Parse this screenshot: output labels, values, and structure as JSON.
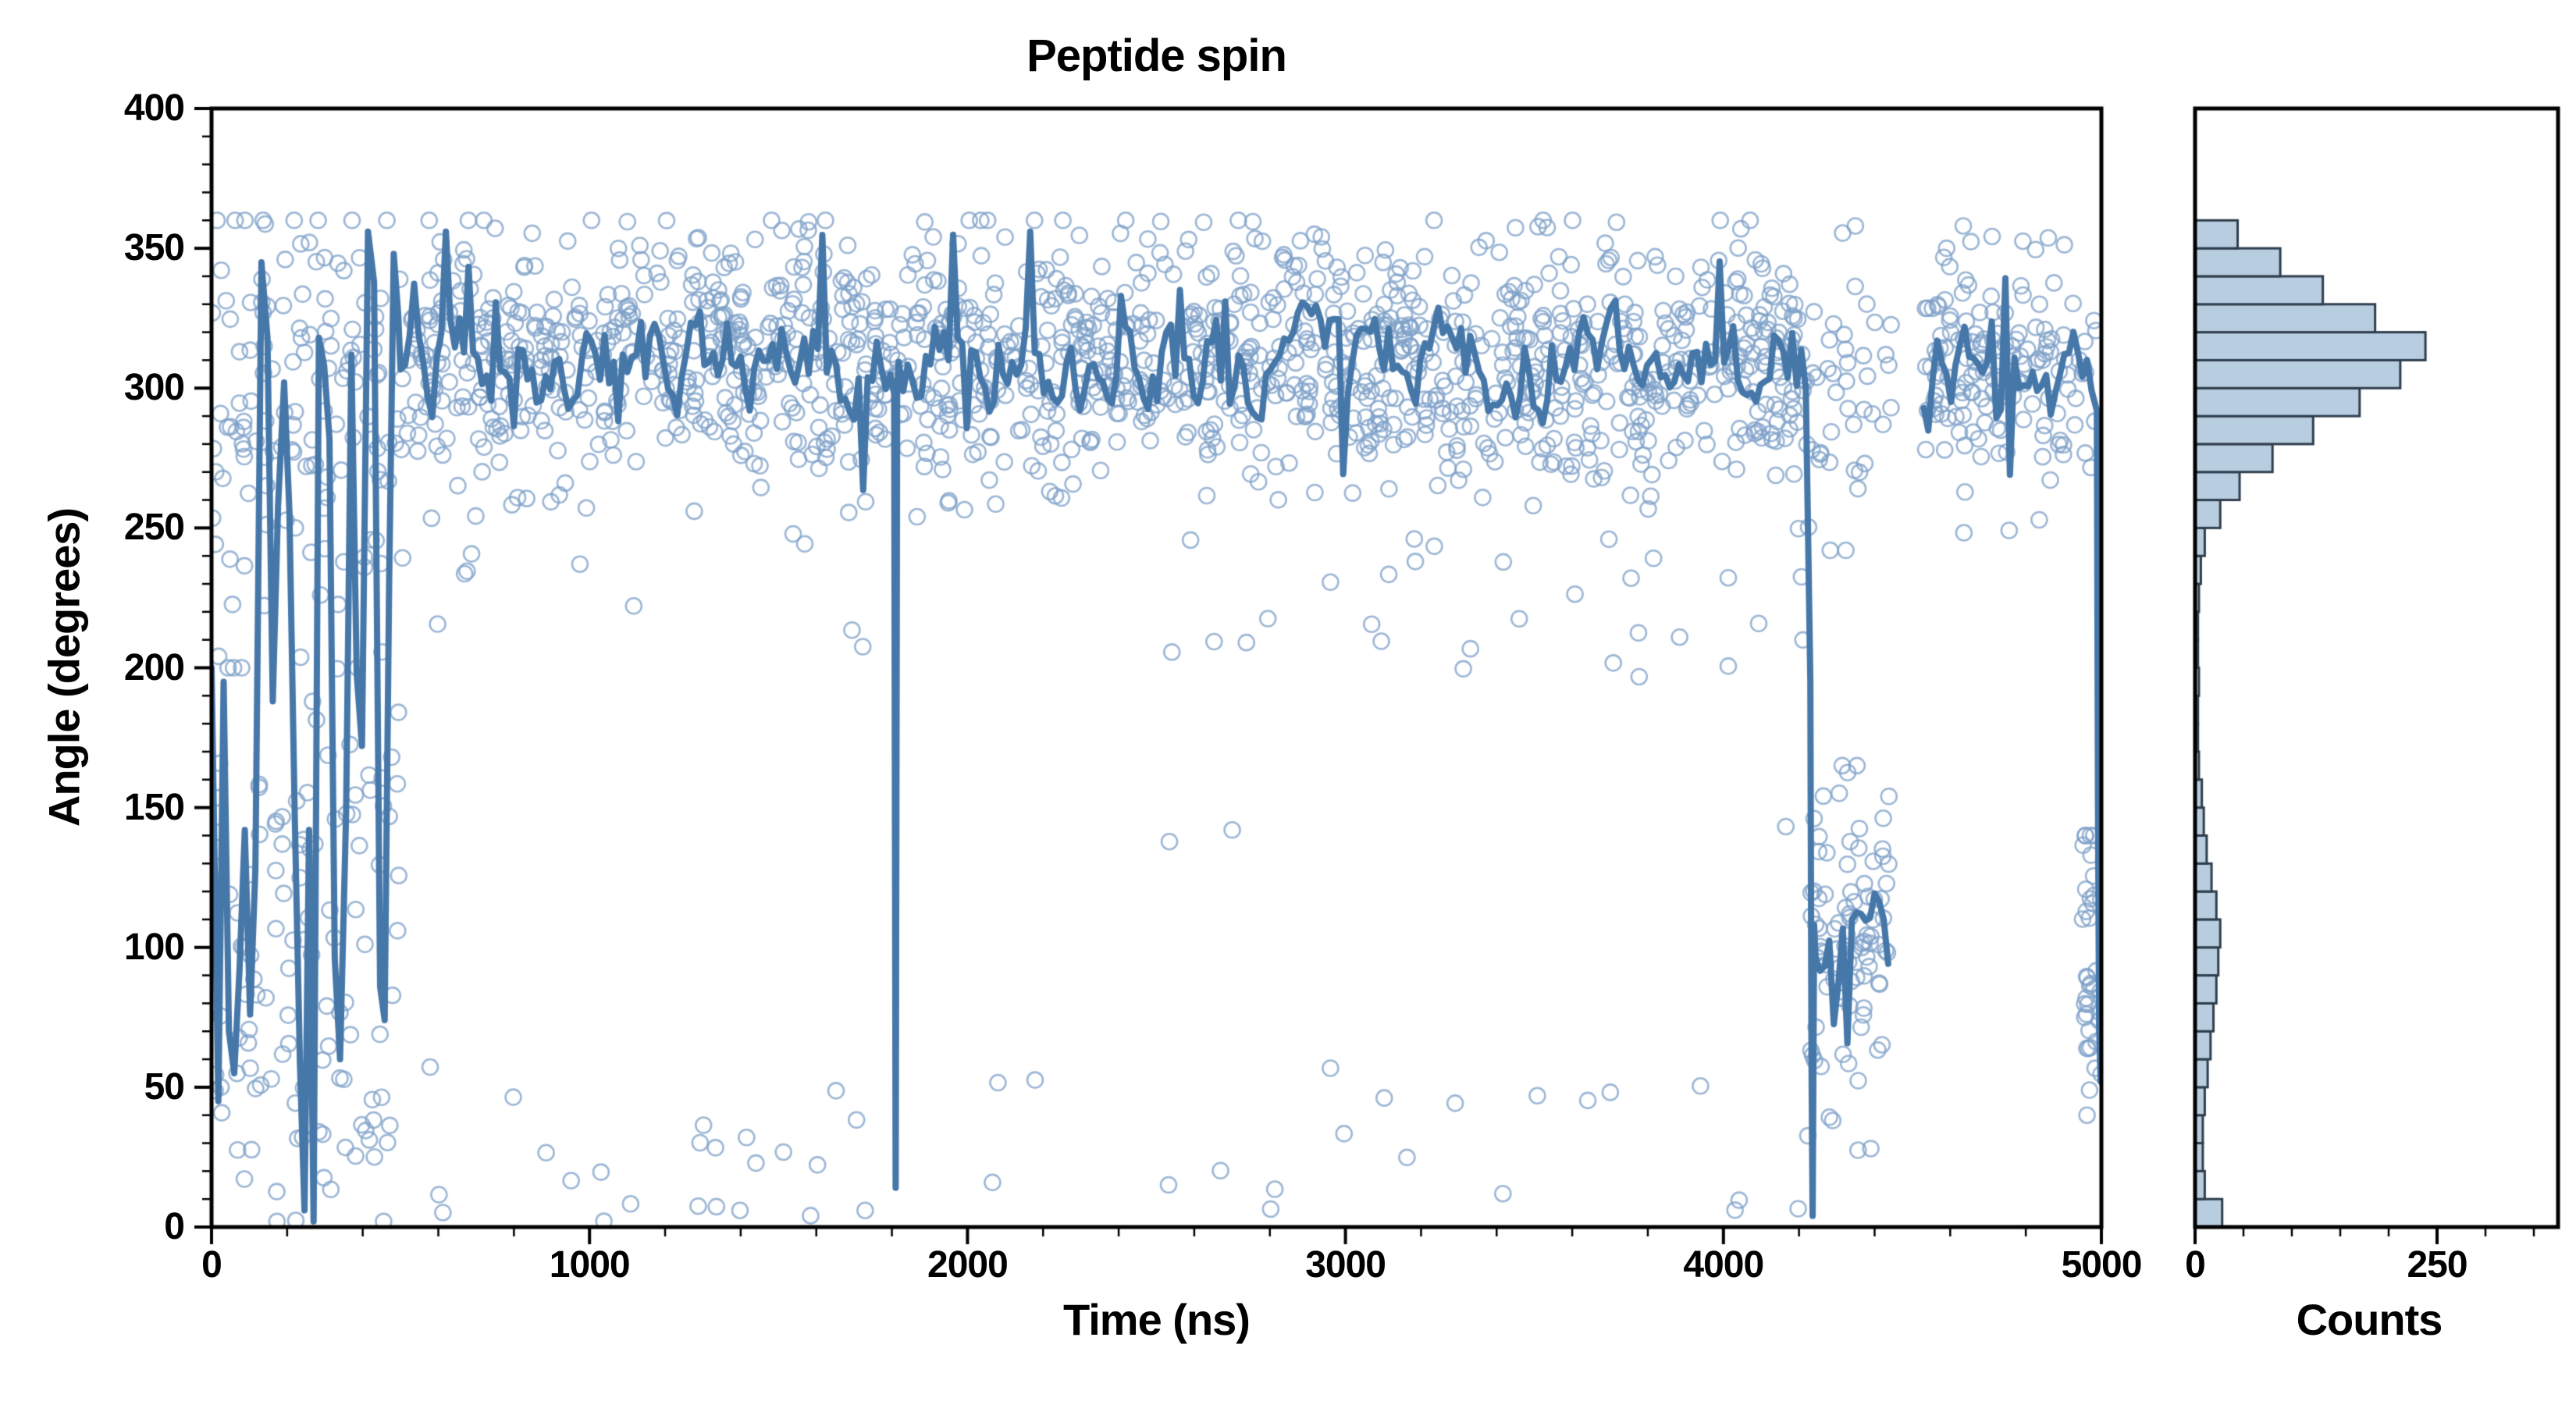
{
  "chart_data": [
    {
      "type": "scatter",
      "title": "Peptide spin",
      "xlabel": "Time (ns)",
      "ylabel": "Angle (degrees)",
      "xlim": [
        0,
        5000
      ],
      "ylim": [
        0,
        400
      ],
      "xticks": [
        0,
        1000,
        2000,
        3000,
        4000,
        5000
      ],
      "x_minor_step": 200,
      "yticks": [
        0,
        50,
        100,
        150,
        200,
        250,
        300,
        350,
        400
      ],
      "y_minor_step": 10,
      "grid": false,
      "legend": "none",
      "marker": "open-circle",
      "marker_color": "#7da0c8",
      "marker_radius": 10,
      "marker_stroke": 2.6,
      "marker_alpha": 0.75,
      "line_color": "#4677a9",
      "line_width": 8,
      "seed": 42,
      "series": [
        {
          "name": "angle samples (scatter)"
        },
        {
          "name": "running average (line)"
        }
      ],
      "scatter_clusters": [
        {
          "t0": 0,
          "t1": 500,
          "n": 120,
          "dist": "normal",
          "mean": 300,
          "sd": 42,
          "clip": [
            175,
            360
          ]
        },
        {
          "t0": 0,
          "t1": 500,
          "n": 100,
          "dist": "normal",
          "mean": 95,
          "sd": 55,
          "clip": [
            2,
            200
          ]
        },
        {
          "t0": 0,
          "t1": 500,
          "n": 25,
          "dist": "uniform",
          "min": 5,
          "max": 355
        },
        {
          "t0": 500,
          "t1": 4230,
          "n": 1350,
          "dist": "normal",
          "mean": 309,
          "sd": 23,
          "clip": [
            238,
            360
          ]
        },
        {
          "t0": 500,
          "t1": 4230,
          "n": 42,
          "dist": "uniform",
          "min": 198,
          "max": 262
        },
        {
          "t0": 500,
          "t1": 4230,
          "n": 34,
          "dist": "uniform",
          "min": 2,
          "max": 58
        },
        {
          "t0": 2400,
          "t1": 4200,
          "n": 8,
          "dist": "uniform",
          "min": 130,
          "max": 230
        },
        {
          "t0": 4230,
          "t1": 4445,
          "n": 90,
          "dist": "normal",
          "mean": 105,
          "sd": 27,
          "clip": [
            18,
            165
          ]
        },
        {
          "t0": 4230,
          "t1": 4445,
          "n": 40,
          "dist": "normal",
          "mean": 302,
          "sd": 28,
          "clip": [
            242,
            358
          ]
        },
        {
          "t0": 4530,
          "t1": 5000,
          "n": 150,
          "dist": "normal",
          "mean": 304,
          "sd": 25,
          "clip": [
            240,
            358
          ]
        },
        {
          "t0": 4950,
          "t1": 5000,
          "n": 38,
          "dist": "normal",
          "mean": 92,
          "sd": 28,
          "clip": [
            40,
            140
          ]
        },
        {
          "t0": 600,
          "t1": 2200,
          "n": 10,
          "dist": "uniform",
          "min": 3,
          "max": 25
        }
      ],
      "mean_line_segments": [
        {
          "type": "points",
          "points": [
            [
              0,
              200
            ],
            [
              18,
              45
            ],
            [
              32,
              195
            ],
            [
              46,
              70
            ],
            [
              60,
              55
            ],
            [
              74,
              92
            ],
            [
              88,
              142
            ],
            [
              102,
              76
            ],
            [
              116,
              128
            ],
            [
              132,
              345
            ],
            [
              148,
              318
            ],
            [
              162,
              188
            ],
            [
              176,
              258
            ],
            [
              192,
              302
            ],
            [
              206,
              256
            ],
            [
              220,
              148
            ],
            [
              234,
              58
            ],
            [
              246,
              6
            ],
            [
              258,
              142
            ],
            [
              270,
              2
            ],
            [
              284,
              318
            ],
            [
              298,
              308
            ],
            [
              312,
              282
            ],
            [
              326,
              96
            ],
            [
              340,
              60
            ],
            [
              356,
              148
            ],
            [
              370,
              312
            ],
            [
              384,
              198
            ],
            [
              398,
              172
            ],
            [
              414,
              356
            ],
            [
              430,
              338
            ],
            [
              446,
              86
            ],
            [
              458,
              74
            ],
            [
              470,
              232
            ],
            [
              482,
              348
            ],
            [
              494,
              326
            ]
          ]
        },
        {
          "type": "noisy",
          "t0": 500,
          "t1": 1802,
          "step": 12,
          "base": 309,
          "amp": 14,
          "spike_prob": 0.06,
          "spike_amp": 38,
          "clip": [
            262,
            356
          ]
        },
        {
          "type": "points",
          "points": [
            [
              1806,
              298
            ],
            [
              1810,
              14
            ],
            [
              1814,
              300
            ]
          ]
        },
        {
          "type": "noisy",
          "t0": 1818,
          "t1": 4226,
          "step": 12,
          "base": 308,
          "amp": 14,
          "spike_prob": 0.06,
          "spike_amp": 38,
          "clip": [
            262,
            356
          ]
        },
        {
          "type": "points",
          "points": [
            [
              4230,
              195
            ],
            [
              4233,
              60
            ],
            [
              4236,
              4
            ],
            [
              4240,
              108
            ]
          ]
        },
        {
          "type": "noisy",
          "t0": 4244,
          "t1": 4440,
          "step": 12,
          "base": 102,
          "amp": 16,
          "spike_prob": 0.08,
          "spike_amp": 30,
          "clip": [
            55,
            165
          ]
        },
        {
          "type": "gap"
        },
        {
          "type": "noisy",
          "t0": 4530,
          "t1": 4984,
          "step": 12,
          "base": 304,
          "amp": 14,
          "spike_prob": 0.06,
          "spike_amp": 34,
          "clip": [
            260,
            352
          ]
        },
        {
          "type": "points",
          "points": [
            [
              4988,
              292
            ],
            [
              4991,
              150
            ],
            [
              4994,
              72
            ],
            [
              4998,
              52
            ]
          ]
        }
      ]
    },
    {
      "type": "histogram",
      "orientation": "horizontal",
      "xlabel": "Counts",
      "xlim": [
        0,
        375
      ],
      "xticks": [
        0,
        250
      ],
      "x_minor_step": 50,
      "ylim": [
        0,
        400
      ],
      "bin_start": 0,
      "bin_width": 10,
      "counts": [
        28,
        10,
        8,
        8,
        10,
        13,
        16,
        19,
        22,
        24,
        26,
        22,
        17,
        12,
        9,
        7,
        4,
        3,
        3,
        4,
        3,
        3,
        4,
        6,
        10,
        26,
        46,
        80,
        122,
        170,
        212,
        238,
        186,
        132,
        88,
        44,
        0,
        0,
        0,
        0
      ],
      "fill": "#b9cde1",
      "edge": "#2f3e4d",
      "edge_width": 3
    }
  ]
}
